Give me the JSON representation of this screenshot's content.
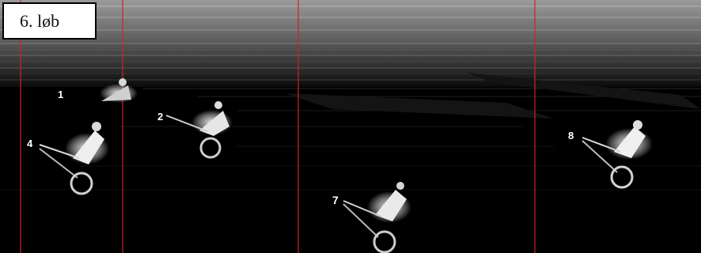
{
  "race_label": "6. løb",
  "saddle_numbers": [
    "1",
    "2",
    "4",
    "7",
    "8"
  ],
  "colors": {
    "finish_line": "#d0202a",
    "background": "#000000",
    "label_background": "#ffffff"
  }
}
